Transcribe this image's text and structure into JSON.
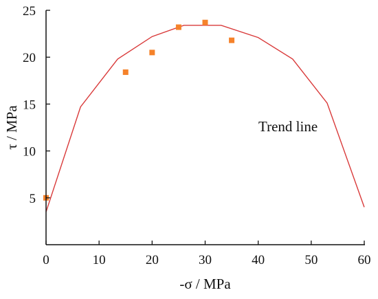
{
  "chart_data": {
    "type": "scatter",
    "xlabel": "-σ / MPa",
    "ylabel": "τ / MPa",
    "xlim": [
      0,
      60
    ],
    "ylim": [
      0,
      25
    ],
    "xticks": [
      0,
      10,
      20,
      30,
      40,
      50,
      60
    ],
    "yticks": [
      5,
      10,
      15,
      20,
      25
    ],
    "grid": false,
    "annotation": "Trend line",
    "colors": {
      "points": "#f5822a",
      "trend": "#d93a3a",
      "axis": "#111111"
    },
    "series": [
      {
        "kind": "scatter",
        "x": [
          0,
          15,
          20,
          25,
          30,
          35
        ],
        "y": [
          5.0,
          18.4,
          20.5,
          23.2,
          23.7,
          21.8
        ]
      },
      {
        "kind": "line",
        "x": [
          0,
          6.5,
          13.5,
          20,
          26,
          33,
          40,
          46.5,
          53,
          60
        ],
        "y": [
          3.5,
          14.7,
          19.8,
          22.2,
          23.4,
          23.4,
          22.1,
          19.8,
          15.1,
          4.0
        ]
      }
    ]
  }
}
